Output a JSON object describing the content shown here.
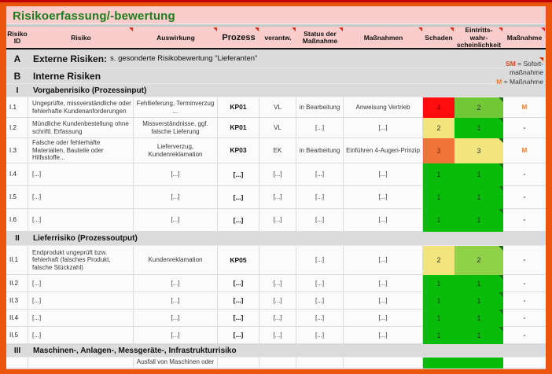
{
  "app": {
    "title": "Risikoerfassung/-bewertung"
  },
  "legend": {
    "sm_abbr": "SM",
    "sm_rest": " = Sofort-",
    "sm_line2": "maßnahme",
    "m_abbr": "M",
    "m_rest": " = Maßnahme"
  },
  "colors": {
    "border_orange": "#E9560B",
    "topline_red": "#C00000",
    "header_pink": "#F8CDCB",
    "section_gray": "#DBDBDB",
    "title_green": "#1E7C1E",
    "risk_red": "#FD0D0D",
    "risk_orange": "#F0743A",
    "risk_yellow": "#F3E57E",
    "risk_green_mid": "#70C837",
    "risk_green_light": "#8FD24A",
    "risk_green": "#09BC09",
    "sm_red": "#E0401C",
    "m_orange": "#ED7D31"
  },
  "table": {
    "columns": [
      "Risiko\nID",
      "Risiko",
      "Auswirkung",
      "Prozess",
      "verantw.",
      "Status der\nMaßnahme",
      "Maßnahmen",
      "Schaden",
      "Eintritts-\nwahr-\nscheinlichkeit",
      "Maßnahme"
    ],
    "rows": [
      {
        "type": "section",
        "level": "major",
        "id": "A",
        "label": "Externe Risiken:",
        "note": "s. gesonderte Risikobewertung \"Lieferanten\""
      },
      {
        "type": "section",
        "level": "major",
        "id": "B",
        "label": "Interne Risiken",
        "note": ""
      },
      {
        "type": "section",
        "level": "minor",
        "id": "I",
        "label": "Vorgabenrisiko (Prozessinput)",
        "note": ""
      },
      {
        "type": "data",
        "id": "I.1",
        "risiko": "Ungeprüfte, missverständliche oder fehlerhafte Kundenanforderungen",
        "auswirkung": "Fehllieferung, Terminverzug ...",
        "prozess": "KP01",
        "verantw": "VL",
        "status": "in Bearbeitung",
        "massnahmen": "Anweisung Vertrieb",
        "schaden": {
          "value": "4",
          "color": "#FD0D0D",
          "text": "#7F0000"
        },
        "eintritt": {
          "value": "2",
          "color": "#70C837",
          "text": "#333333"
        },
        "massnahme": "M"
      },
      {
        "type": "data",
        "id": "I.2",
        "risiko": "Mündliche Kundenbestellung ohne schriftl. Erfassung",
        "auswirkung": "Missverständnisse, ggf. falsche Lieferung",
        "prozess": "KP01",
        "verantw": "VL",
        "status": "[...]",
        "massnahmen": "[...]",
        "schaden": {
          "value": "2",
          "color": "#F3E57E",
          "text": "#333333"
        },
        "eintritt": {
          "value": "1",
          "color": "#09BC09",
          "text": "#1A3A1A"
        },
        "massnahme": "-"
      },
      {
        "type": "data",
        "id": "I.3",
        "risiko": "Falsche oder fehlerhafte Materialien, Bauteile oder Hilfsstoffe...",
        "auswirkung": "Lieferverzug, Kundenreklamation",
        "prozess": "KP03",
        "verantw": "EK",
        "status": "in Bearbeitung",
        "massnahmen": "Einführen 4-Augen-Prinzip",
        "schaden": {
          "value": "3",
          "color": "#F0743A",
          "text": "#7F2A00"
        },
        "eintritt": {
          "value": "3",
          "color": "#F3E57E",
          "text": "#333333"
        },
        "massnahme": "M"
      },
      {
        "type": "data",
        "id": "I.4",
        "risiko": "[...]",
        "auswirkung": "[...]",
        "prozess": "[...]",
        "verantw": "[...]",
        "status": "[...]",
        "massnahmen": "[...]",
        "schaden": {
          "value": "1",
          "color": "#09BC09",
          "text": "#1A3A1A"
        },
        "eintritt": {
          "value": "1",
          "color": "#09BC09",
          "text": "#1A3A1A"
        },
        "massnahme": "-"
      },
      {
        "type": "data",
        "id": "I.5",
        "risiko": "[...]",
        "auswirkung": "[...]",
        "prozess": "[...]",
        "verantw": "[...]",
        "status": "[...]",
        "massnahmen": "[...]",
        "schaden": {
          "value": "1",
          "color": "#09BC09",
          "text": "#1A3A1A"
        },
        "eintritt": {
          "value": "1",
          "color": "#09BC09",
          "text": "#1A3A1A"
        },
        "massnahme": "-"
      },
      {
        "type": "data",
        "id": "I.6",
        "risiko": "[...]",
        "auswirkung": "[...]",
        "prozess": "[...]",
        "verantw": "[...]",
        "status": "[...]",
        "massnahmen": "[...]",
        "schaden": {
          "value": "1",
          "color": "#09BC09",
          "text": "#1A3A1A"
        },
        "eintritt": {
          "value": "1",
          "color": "#09BC09",
          "text": "#1A3A1A"
        },
        "massnahme": "-"
      },
      {
        "type": "section",
        "level": "minor",
        "id": "II",
        "label": "Lieferrisiko (Prozessoutput)",
        "note": ""
      },
      {
        "type": "data",
        "id": "II.1",
        "risiko": "Endprodukt ungeprüft bzw. fehlerhaft (falsches Produkt, falsche Stückzahl)",
        "auswirkung": "Kundenreklamation",
        "prozess": "KP05",
        "verantw": "",
        "status": "[...]",
        "massnahmen": "[...]",
        "schaden": {
          "value": "2",
          "color": "#F3E57E",
          "text": "#333333"
        },
        "eintritt": {
          "value": "2",
          "color": "#8FD24A",
          "text": "#333333"
        },
        "massnahme": "-"
      },
      {
        "type": "data",
        "id": "II.2",
        "risiko": "[...]",
        "auswirkung": "[...]",
        "prozess": "[...]",
        "verantw": "[...]",
        "status": "[...]",
        "massnahmen": "[...]",
        "schaden": {
          "value": "1",
          "color": "#09BC09",
          "text": "#1A3A1A"
        },
        "eintritt": {
          "value": "1",
          "color": "#09BC09",
          "text": "#1A3A1A"
        },
        "massnahme": "-"
      },
      {
        "type": "data",
        "id": "II.3",
        "risiko": "[...]",
        "auswirkung": "[...]",
        "prozess": "[...]",
        "verantw": "[...]",
        "status": "[...]",
        "massnahmen": "[...]",
        "schaden": {
          "value": "1",
          "color": "#09BC09",
          "text": "#1A3A1A"
        },
        "eintritt": {
          "value": "1",
          "color": "#09BC09",
          "text": "#1A3A1A"
        },
        "massnahme": "-"
      },
      {
        "type": "data",
        "id": "II.4",
        "risiko": "[...]",
        "auswirkung": "[...]",
        "prozess": "[...]",
        "verantw": "[...]",
        "status": "[...]",
        "massnahmen": "[...]",
        "schaden": {
          "value": "1",
          "color": "#09BC09",
          "text": "#1A3A1A"
        },
        "eintritt": {
          "value": "1",
          "color": "#09BC09",
          "text": "#1A3A1A"
        },
        "massnahme": "-"
      },
      {
        "type": "data",
        "id": "II.5",
        "risiko": "[...]",
        "auswirkung": "[...]",
        "prozess": "[...]",
        "verantw": "[...]",
        "status": "[...]",
        "massnahmen": "[...]",
        "schaden": {
          "value": "1",
          "color": "#09BC09",
          "text": "#1A3A1A"
        },
        "eintritt": {
          "value": "1",
          "color": "#09BC09",
          "text": "#1A3A1A"
        },
        "massnahme": "-"
      },
      {
        "type": "section",
        "level": "minor",
        "id": "III",
        "label": "Maschinen-, Anlagen-, Messgeräte-, Infrastrukturrisiko",
        "note": ""
      },
      {
        "type": "data",
        "id": "",
        "clipped": true,
        "risiko": "",
        "auswirkung": "Ausfall von Maschinen oder",
        "prozess": "",
        "verantw": "",
        "status": "",
        "massnahmen": "",
        "schaden": {
          "value": "",
          "color": "#09BC09",
          "text": "#1A3A1A"
        },
        "eintritt": {
          "value": "",
          "color": "#09BC09",
          "text": "#1A3A1A",
          "nomarker": true
        },
        "massnahme": ""
      }
    ]
  }
}
